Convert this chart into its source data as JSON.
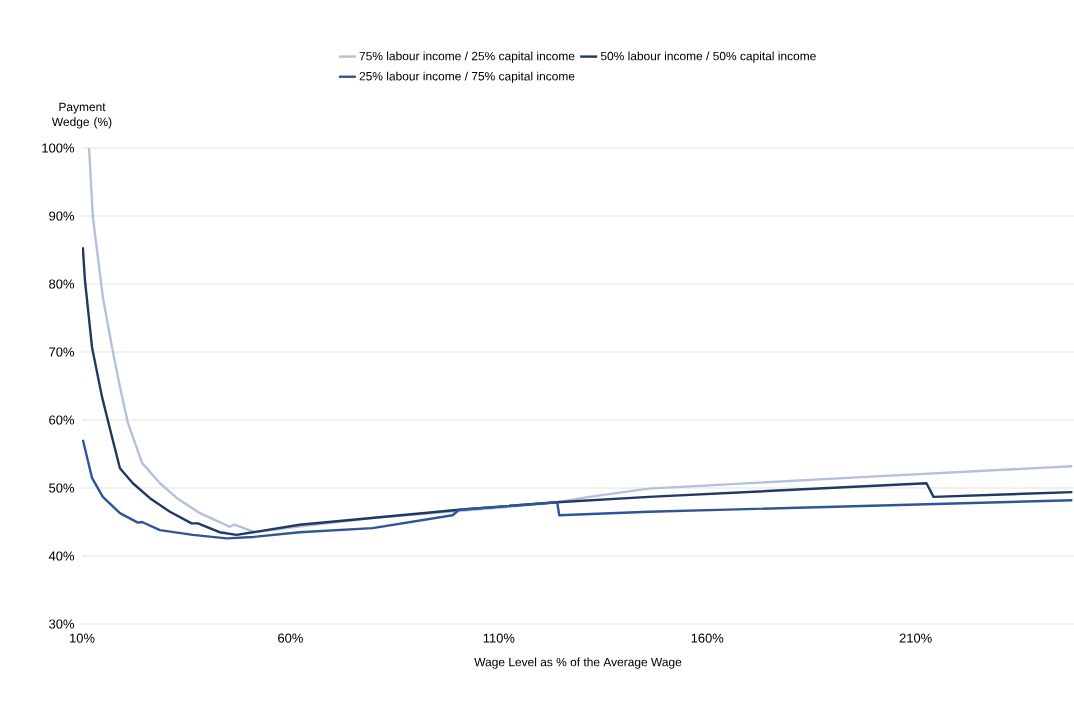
{
  "chart_data": {
    "type": "line",
    "xlabel": "Wage Level as % of the Average Wage",
    "ylabel": "Payment Wedge (%)",
    "xlim": [
      10,
      248
    ],
    "ylim": [
      30,
      100
    ],
    "xticks": [
      {
        "value": 10,
        "label": "10%"
      },
      {
        "value": 60,
        "label": "60%"
      },
      {
        "value": 110,
        "label": "110%"
      },
      {
        "value": 160,
        "label": "160%"
      },
      {
        "value": 210,
        "label": "210%"
      }
    ],
    "yticks": [
      {
        "value": 30,
        "label": "30%"
      },
      {
        "value": 40,
        "label": "40%"
      },
      {
        "value": 50,
        "label": "50%"
      },
      {
        "value": 60,
        "label": "60%"
      },
      {
        "value": 70,
        "label": "70%"
      },
      {
        "value": 80,
        "label": "80%"
      },
      {
        "value": 90,
        "label": "90%"
      },
      {
        "value": 100,
        "label": "100%"
      }
    ],
    "grid": "y",
    "legend": "top",
    "marker": "none",
    "line_style": "solid",
    "series": [
      {
        "name": "75% labour income / 25% capital income",
        "color": "#b4c0dc",
        "x": [
          11.7,
          12.6,
          15,
          17.2,
          19.1,
          21,
          24.4,
          28.7,
          32.8,
          38.3,
          45.4,
          46.6,
          51.4,
          60,
          80,
          100,
          110,
          124,
          131.7,
          146,
          197,
          247.6
        ],
        "values": [
          100,
          89.9,
          78.1,
          70.7,
          64.9,
          59.6,
          53.7,
          50.7,
          48.5,
          46.3,
          44.3,
          44.6,
          43.5,
          44.2,
          45.6,
          46.6,
          47.1,
          47.9,
          48.7,
          49.9,
          51.6,
          53.2
        ]
      },
      {
        "name": "50% labour income / 50% capital income",
        "color": "#203864",
        "x": [
          10.2,
          10.7,
          12.4,
          14.8,
          17.2,
          19.1,
          22.2,
          26.3,
          31.1,
          36.3,
          37.8,
          43,
          47.1,
          62.2,
          100.5,
          124,
          146,
          212.6,
          214.3,
          247.6
        ],
        "values": [
          85.4,
          80.6,
          70.7,
          63.4,
          57.5,
          52.9,
          50.7,
          48.5,
          46.5,
          44.8,
          44.8,
          43.5,
          43.1,
          44.6,
          46.8,
          47.9,
          48.7,
          50.7,
          48.7,
          49.4
        ]
      },
      {
        "name": "25% labour income / 75% capital income",
        "color": "#2f5597",
        "x": [
          10.2,
          12.4,
          15,
          19.1,
          23.4,
          24.4,
          28.7,
          36.6,
          44.7,
          51,
          62.2,
          79.7,
          98.9,
          100.5,
          124,
          124.5,
          146,
          247.6
        ],
        "values": [
          57.1,
          51.5,
          48.7,
          46.3,
          44.9,
          45,
          43.8,
          43.1,
          42.6,
          42.8,
          43.5,
          44.1,
          46,
          46.8,
          47.9,
          46,
          46.5,
          48.2
        ]
      }
    ]
  }
}
